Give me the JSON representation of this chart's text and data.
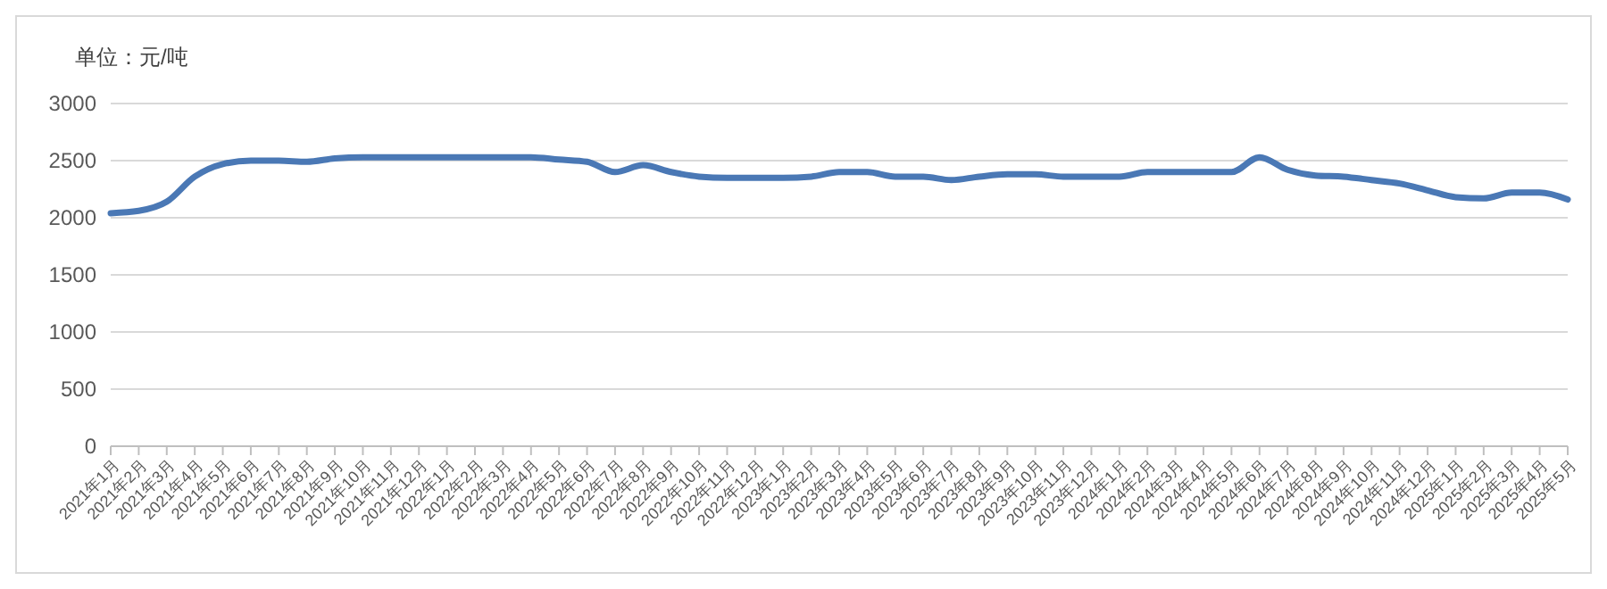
{
  "chart_data": {
    "type": "line",
    "ylabel": "单位：元/吨",
    "categories": [
      "2021年1月",
      "2021年2月",
      "2021年3月",
      "2021年4月",
      "2021年5月",
      "2021年6月",
      "2021年7月",
      "2021年8月",
      "2021年9月",
      "2021年10月",
      "2021年11月",
      "2021年12月",
      "2022年1月",
      "2022年2月",
      "2022年3月",
      "2022年4月",
      "2022年5月",
      "2022年6月",
      "2022年7月",
      "2022年8月",
      "2022年9月",
      "2022年10月",
      "2022年11月",
      "2022年12月",
      "2023年1月",
      "2023年2月",
      "2023年3月",
      "2023年4月",
      "2023年5月",
      "2023年6月",
      "2023年7月",
      "2023年8月",
      "2023年9月",
      "2023年10月",
      "2023年11月",
      "2023年12月",
      "2024年1月",
      "2024年2月",
      "2024年3月",
      "2024年4月",
      "2024年5月",
      "2024年6月",
      "2024年7月",
      "2024年8月",
      "2024年9月",
      "2024年10月",
      "2024年11月",
      "2024年12月",
      "2025年1月",
      "2025年2月",
      "2025年3月",
      "2025年4月",
      "2025年5月"
    ],
    "series": [
      {
        "color": "#4a78b5",
        "values": [
          2040,
          2060,
          2140,
          2360,
          2470,
          2500,
          2500,
          2490,
          2520,
          2530,
          2530,
          2530,
          2530,
          2530,
          2530,
          2530,
          2510,
          2490,
          2400,
          2460,
          2400,
          2360,
          2350,
          2350,
          2350,
          2360,
          2400,
          2400,
          2360,
          2360,
          2330,
          2360,
          2380,
          2380,
          2360,
          2360,
          2360,
          2400,
          2400,
          2400,
          2400,
          2530,
          2420,
          2370,
          2360,
          2330,
          2300,
          2240,
          2180,
          2170,
          2220,
          2220,
          2160
        ]
      }
    ],
    "ylim": [
      0,
      3000
    ],
    "yticks": [
      0,
      500,
      1000,
      1500,
      2000,
      2500,
      3000
    ],
    "grid": "y"
  }
}
